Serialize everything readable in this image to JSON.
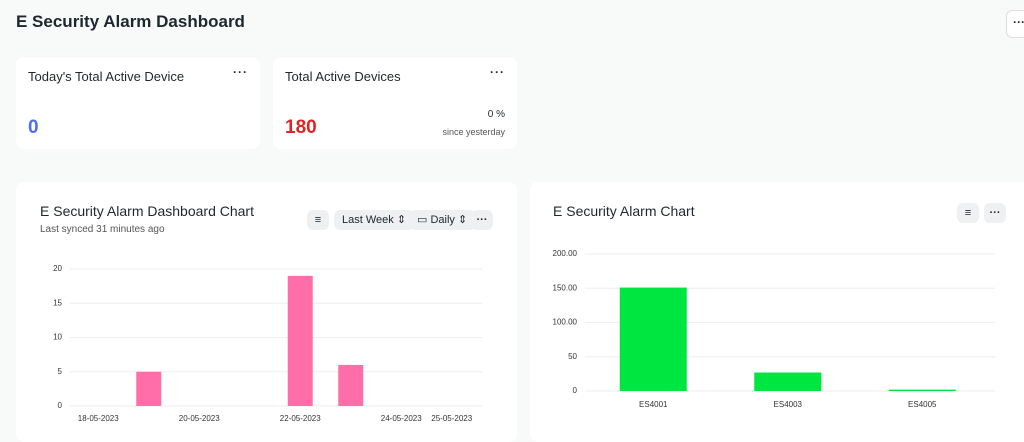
{
  "header": {
    "title": "E Security Alarm Dashboard"
  },
  "cards": [
    {
      "title": "Today's Total Active Device",
      "value": 0,
      "color": "#4f6ff0"
    },
    {
      "title": "Total Active Devices",
      "value": 180,
      "color": "#e02424",
      "change": "0 %",
      "change_note": "since yesterday"
    }
  ],
  "charts": [
    {
      "type": "bar",
      "title": "E Security Alarm Dashboard Chart",
      "subtitle": "Last synced 31 minutes ago",
      "controls": [
        "Last Week",
        "Daily"
      ],
      "categories": [
        "18-05-2023",
        null,
        "20-05-2023",
        null,
        "22-05-2023",
        null,
        "24-05-2023",
        "25-05-2023"
      ],
      "values": [
        0,
        5,
        0,
        0,
        19,
        6,
        0,
        0
      ],
      "color": "#ff6ea9",
      "ylim": [
        0,
        20
      ],
      "yticks": [
        0,
        5,
        10,
        15,
        20
      ],
      "grid": true
    },
    {
      "type": "bar",
      "title": "E Security Alarm Chart",
      "categories": [
        "ES4001",
        "ES4003",
        "ES4005"
      ],
      "values": [
        151,
        27,
        2
      ],
      "color": "#00e640",
      "ylim": [
        0,
        200
      ],
      "yticks": [
        0,
        50,
        {
          "value": 100,
          "label": "100.00"
        },
        {
          "value": 150,
          "label": "150.00"
        },
        {
          "value": 200,
          "label": "200.00"
        }
      ],
      "grid": true
    }
  ]
}
